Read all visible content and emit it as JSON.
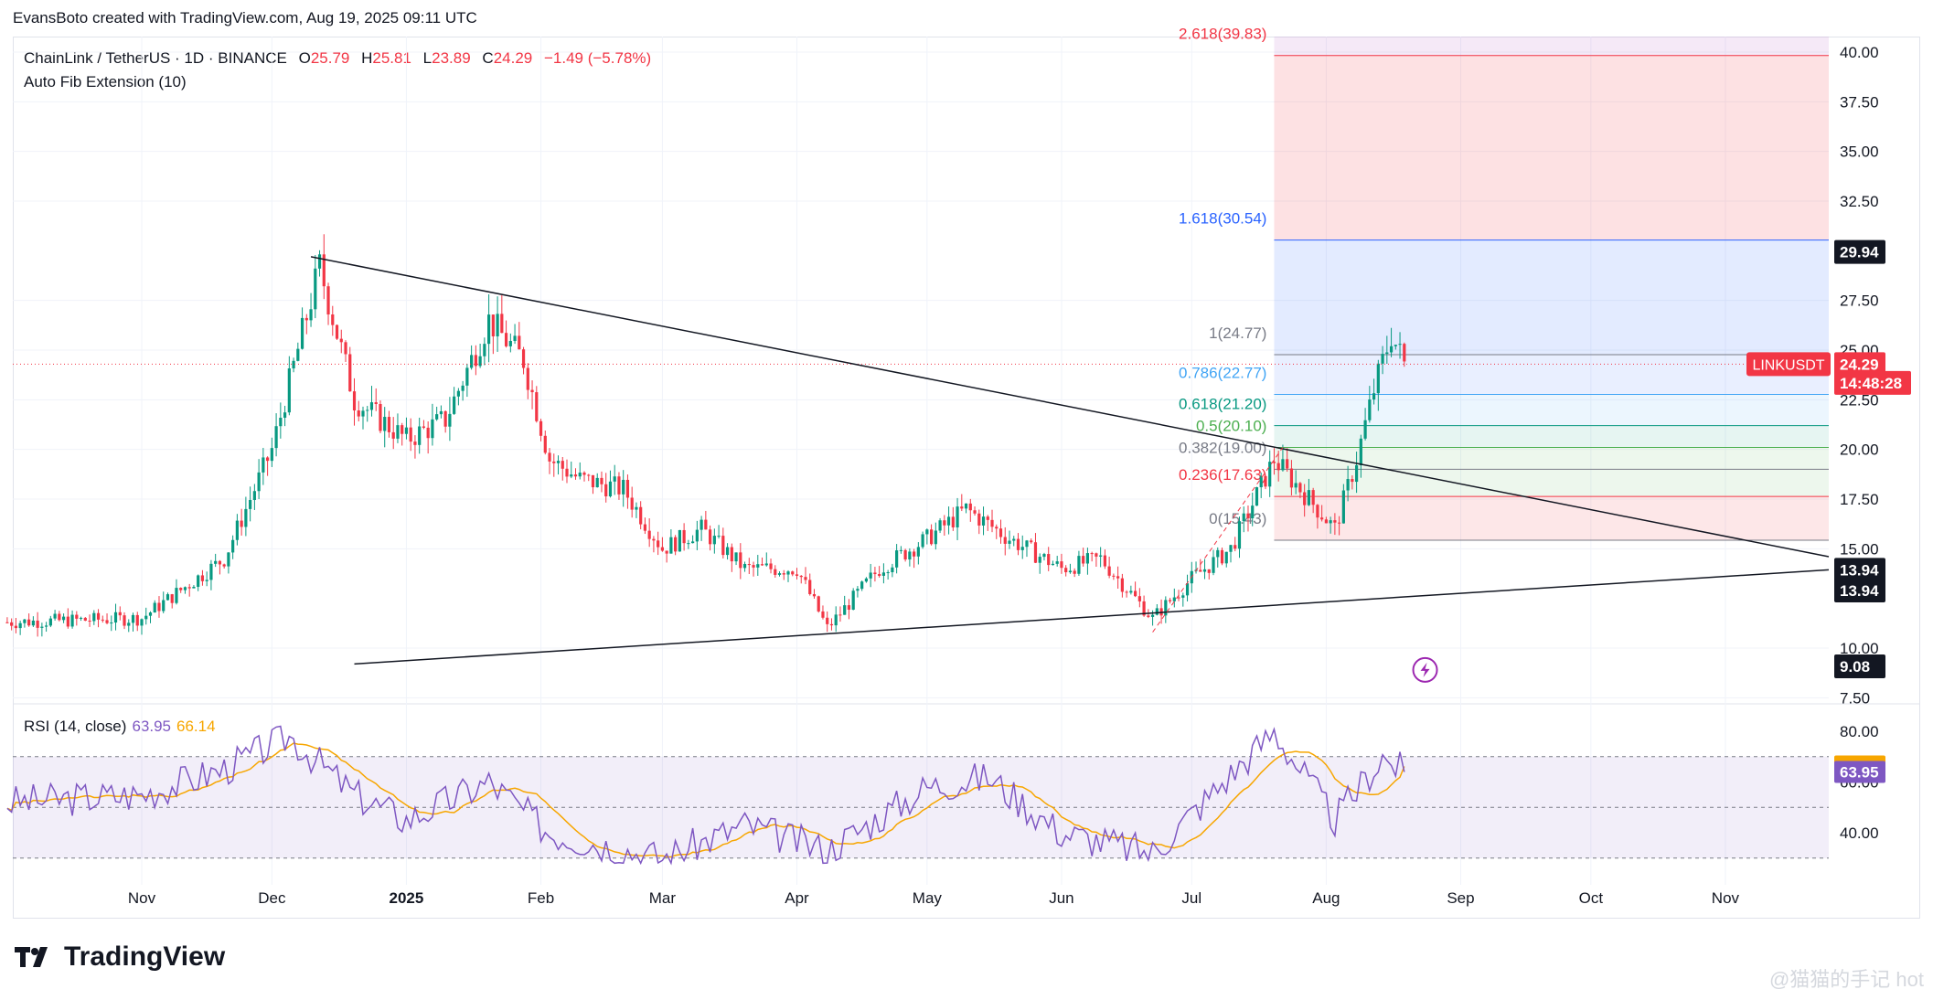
{
  "header": {
    "credit": "EvansBoto created with TradingView.com, Aug 19, 2025 09:11 UTC"
  },
  "symbol": {
    "name": "ChainLink / TetherUS · 1D · BINANCE",
    "o_label": "O",
    "o": "25.79",
    "h_label": "H",
    "h": "25.81",
    "l_label": "L",
    "l": "23.89",
    "c_label": "C",
    "c": "24.29",
    "change": "−1.49 (−5.78%)"
  },
  "indicator": "Auto Fib Extension (10)",
  "rsi_legend": {
    "label": "RSI (14, close)",
    "value": "63.95",
    "ma": "66.14"
  },
  "brand": "TradingView",
  "watermark": "@猫猫的手记 hot",
  "colors": {
    "up": "#089981",
    "down": "#f23645",
    "rsi": "#7e57c2",
    "rsi_ma": "#f7a600",
    "fib_blue": "#2962ff"
  },
  "chart_data": {
    "type": "candlestick",
    "symbol": "LINKUSDT",
    "y_axis": {
      "ticks": [
        "7.50",
        "10.00",
        "15.00",
        "17.50",
        "20.00",
        "22.50",
        "25.00",
        "27.50",
        "32.50",
        "35.00",
        "37.50",
        "40.00"
      ],
      "range": [
        7.0,
        40.8
      ]
    },
    "x_axis": {
      "labels": [
        "Nov",
        "Dec",
        "2025",
        "Feb",
        "Mar",
        "Apr",
        "May",
        "Jun",
        "Jul",
        "Aug",
        "Sep",
        "Oct",
        "Nov"
      ]
    },
    "price_tags": [
      {
        "label": "29.94",
        "value": 29.94,
        "style": "dark"
      },
      {
        "label": "LINKUSDT",
        "value": 24.29,
        "style": "red-name"
      },
      {
        "label": "24.29",
        "value": 24.29,
        "style": "red"
      },
      {
        "label": "14:48:28",
        "value": 23.35,
        "style": "red"
      },
      {
        "label": "13.94",
        "value": 13.94,
        "style": "dark"
      },
      {
        "label": "13.94",
        "value": 12.9,
        "style": "dark"
      },
      {
        "label": "9.08",
        "value": 9.08,
        "style": "dark"
      }
    ],
    "fib_levels": [
      {
        "label": "2.618(39.83)",
        "value": 39.83,
        "color": "#f23645"
      },
      {
        "label": "1.618(30.54)",
        "value": 30.54,
        "color": "#2962ff"
      },
      {
        "label": "1(24.77)",
        "value": 24.77,
        "color": "#787b86"
      },
      {
        "label": "0.786(22.77)",
        "value": 22.77,
        "color": "#42a5f5"
      },
      {
        "label": "0.618(21.20)",
        "value": 21.2,
        "color": "#089981"
      },
      {
        "label": "0.5(20.10)",
        "value": 20.1,
        "color": "#4caf50"
      },
      {
        "label": "0.382(19.00)",
        "value": 19.0,
        "color": "#787b86"
      },
      {
        "label": "0.236(17.63)",
        "value": 17.63,
        "color": "#f23645"
      },
      {
        "label": "0(15.43)",
        "value": 15.43,
        "color": "#787b86"
      }
    ],
    "trendlines": [
      {
        "from": [
          "Dec 10 2024",
          29.7
        ],
        "to": [
          "Dec 2025",
          14.6
        ],
        "name": "descending-resistance"
      },
      {
        "from": [
          "Dec 20 2024",
          9.2
        ],
        "to": [
          "Dec 2025",
          13.94
        ],
        "name": "ascending-support"
      }
    ],
    "candles_anchor": [
      [
        "Oct 2024",
        11.3
      ],
      [
        "Nov 2024",
        11.5
      ],
      [
        "Nov 20 2024",
        14.5
      ],
      [
        "Dec 1 2024",
        20.0
      ],
      [
        "Dec 12 2024",
        29.2
      ],
      [
        "Dec 20 2024",
        22.5
      ],
      [
        "Jan 1 2025",
        20.5
      ],
      [
        "Jan 10 2025",
        21.5
      ],
      [
        "Jan 20 2025",
        26.5
      ],
      [
        "Jan 28 2025",
        24.5
      ],
      [
        "Feb 3 2025",
        19.5
      ],
      [
        "Feb 10 2025",
        18.5
      ],
      [
        "Feb 20 2025",
        18.0
      ],
      [
        "Mar 1 2025",
        15.0
      ],
      [
        "Mar 10 2025",
        16.0
      ],
      [
        "Mar 20 2025",
        14.0
      ],
      [
        "Apr 1 2025",
        14.0
      ],
      [
        "Apr 8 2025",
        11.0
      ],
      [
        "Apr 20 2025",
        14.0
      ],
      [
        "May 1 2025",
        15.5
      ],
      [
        "May 10 2025",
        17.0
      ],
      [
        "May 20 2025",
        15.5
      ],
      [
        "Jun 1 2025",
        14.0
      ],
      [
        "Jun 10 2025",
        14.5
      ],
      [
        "Jun 22 2025",
        11.5
      ],
      [
        "Jul 1 2025",
        13.5
      ],
      [
        "Jul 10 2025",
        15.0
      ],
      [
        "Jul 20 2025",
        19.5
      ],
      [
        "Jul 28 2025",
        17.5
      ],
      [
        "Aug 3 2025",
        16.0
      ],
      [
        "Aug 8 2025",
        19.5
      ],
      [
        "Aug 12 2025",
        23.0
      ],
      [
        "Aug 16 2025",
        25.8
      ],
      [
        "Aug 19 2025",
        24.29
      ]
    ],
    "rsi": {
      "y_ticks": [
        "40.00",
        "60.00",
        "80.00"
      ],
      "bands": [
        30,
        50,
        70
      ],
      "anchors": [
        [
          "Oct 2024",
          52
        ],
        [
          "Nov 2024",
          55
        ],
        [
          "Nov 20 2024",
          65
        ],
        [
          "Dec 5 2024",
          78
        ],
        [
          "Dec 20 2024",
          55
        ],
        [
          "Jan 1 2025",
          45
        ],
        [
          "Jan 20 2025",
          60
        ],
        [
          "Feb 3 2025",
          40
        ],
        [
          "Mar 1 2025",
          30
        ],
        [
          "Mar 20 2025",
          43
        ],
        [
          "Apr 8 2025",
          33
        ],
        [
          "May 1 2025",
          58
        ],
        [
          "May 15 2025",
          62
        ],
        [
          "Jun 1 2025",
          40
        ],
        [
          "Jun 22 2025",
          32
        ],
        [
          "Jul 20 2025",
          80
        ],
        [
          "Aug 3 2025",
          45
        ],
        [
          "Aug 14 2025",
          70
        ],
        [
          "Aug 19 2025",
          63.95
        ]
      ],
      "current": 63.95,
      "ma_current": 66.14
    }
  }
}
